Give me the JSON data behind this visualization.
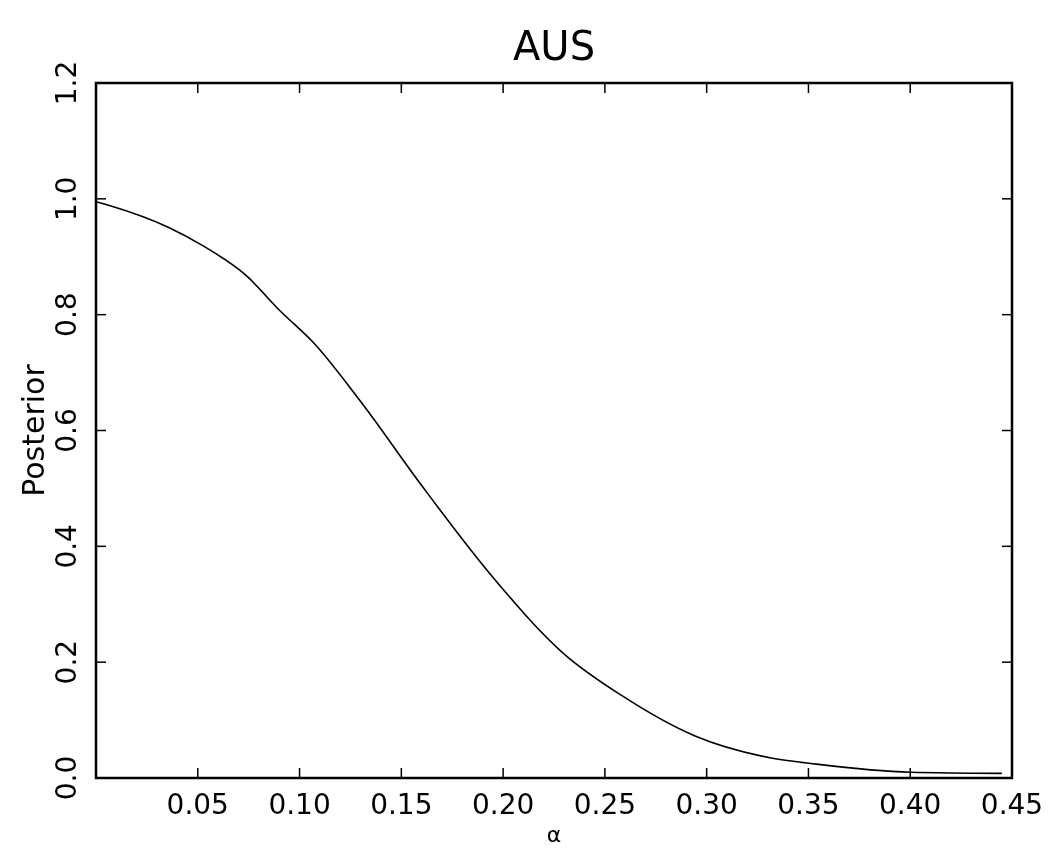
{
  "chart_data": {
    "type": "line",
    "title": "AUS",
    "xlabel": "α",
    "ylabel": "Posterior",
    "series": [
      {
        "color": "#000000",
        "x": [
          0,
          0.007,
          0.036,
          0.052,
          0.074,
          0.09,
          0.107,
          0.13,
          0.16,
          0.193,
          0.23,
          0.258,
          0.294,
          0.331,
          0.354,
          0.4,
          0.445
        ],
        "values": [
          0.995,
          0.988,
          0.95,
          0.92,
          0.867,
          0.808,
          0.751,
          0.65,
          0.505,
          0.355,
          0.214,
          0.143,
          0.073,
          0.035,
          0.024,
          0.01,
          0.008
        ]
      }
    ],
    "xlim": [
      0,
      0.45
    ],
    "xticks": [
      {
        "value": 0,
        "label": null
      },
      {
        "value": 0.05,
        "label": "0.05"
      },
      {
        "value": 0.1,
        "label": "0.10"
      },
      {
        "value": 0.15,
        "label": "0.15"
      },
      {
        "value": 0.2,
        "label": "0.20"
      },
      {
        "value": 0.25,
        "label": "0.25"
      },
      {
        "value": 0.3,
        "label": "0.30"
      },
      {
        "value": 0.35,
        "label": "0.35"
      },
      {
        "value": 0.4,
        "label": "0.40"
      },
      {
        "value": 0.45,
        "label": "0.45"
      }
    ],
    "ylim": [
      0,
      1.2
    ],
    "yticks": [
      {
        "value": 0,
        "label": "0.0"
      },
      {
        "value": 0.2,
        "label": "0.2"
      },
      {
        "value": 0.4,
        "label": "0.4"
      },
      {
        "value": 0.6,
        "label": "0.6"
      },
      {
        "value": 0.8,
        "label": "0.8"
      },
      {
        "value": 1,
        "label": "1.0"
      },
      {
        "value": 1.2,
        "label": "1.2"
      }
    ],
    "grid": false,
    "marker": "none",
    "line_style": "solid"
  }
}
